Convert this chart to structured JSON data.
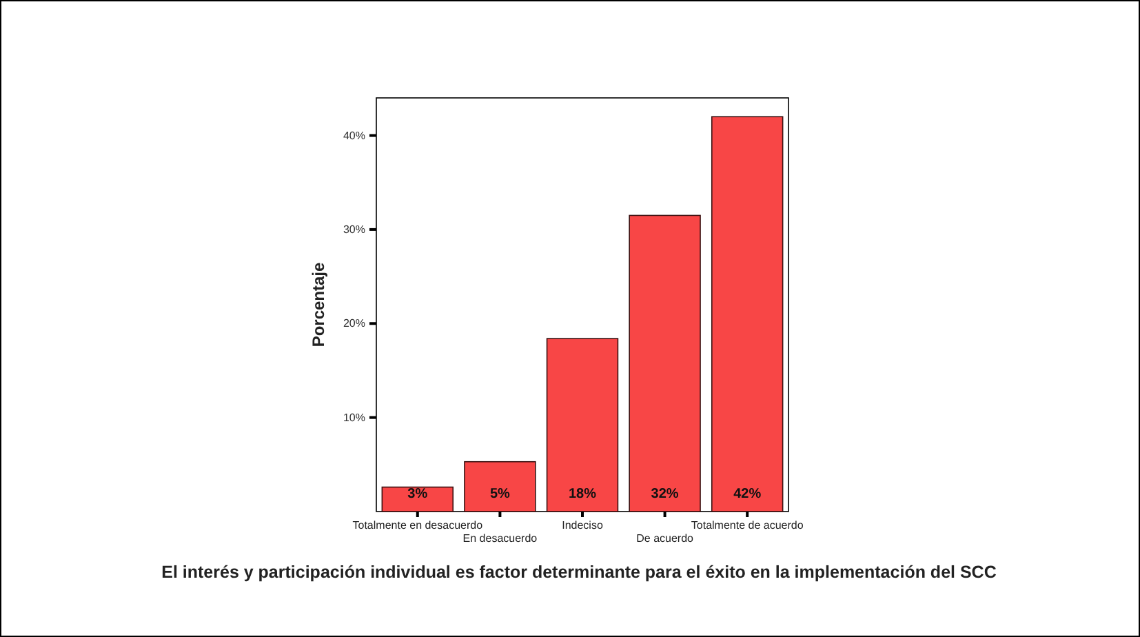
{
  "chart_data": {
    "type": "bar",
    "xlabel": "El interés y participación individual es factor determinante para el éxito en la implementación del SCC",
    "ylabel": "Porcentaje",
    "categories": [
      "Totalmente en desacuerdo",
      "En desacuerdo",
      "Indeciso",
      "De acuerdo",
      "Totalmente de acuerdo"
    ],
    "values": [
      2.6,
      5.3,
      18.4,
      31.5,
      42
    ],
    "value_labels": [
      "3%",
      "5%",
      "18%",
      "32%",
      "42%"
    ],
    "color": "#f84646",
    "ylim": [
      0,
      44
    ],
    "yticks": [
      {
        "value": 10,
        "label": "10%"
      },
      {
        "value": 20,
        "label": "20%"
      },
      {
        "value": 30,
        "label": "30%"
      },
      {
        "value": 40,
        "label": "40%"
      }
    ],
    "grid": false
  }
}
